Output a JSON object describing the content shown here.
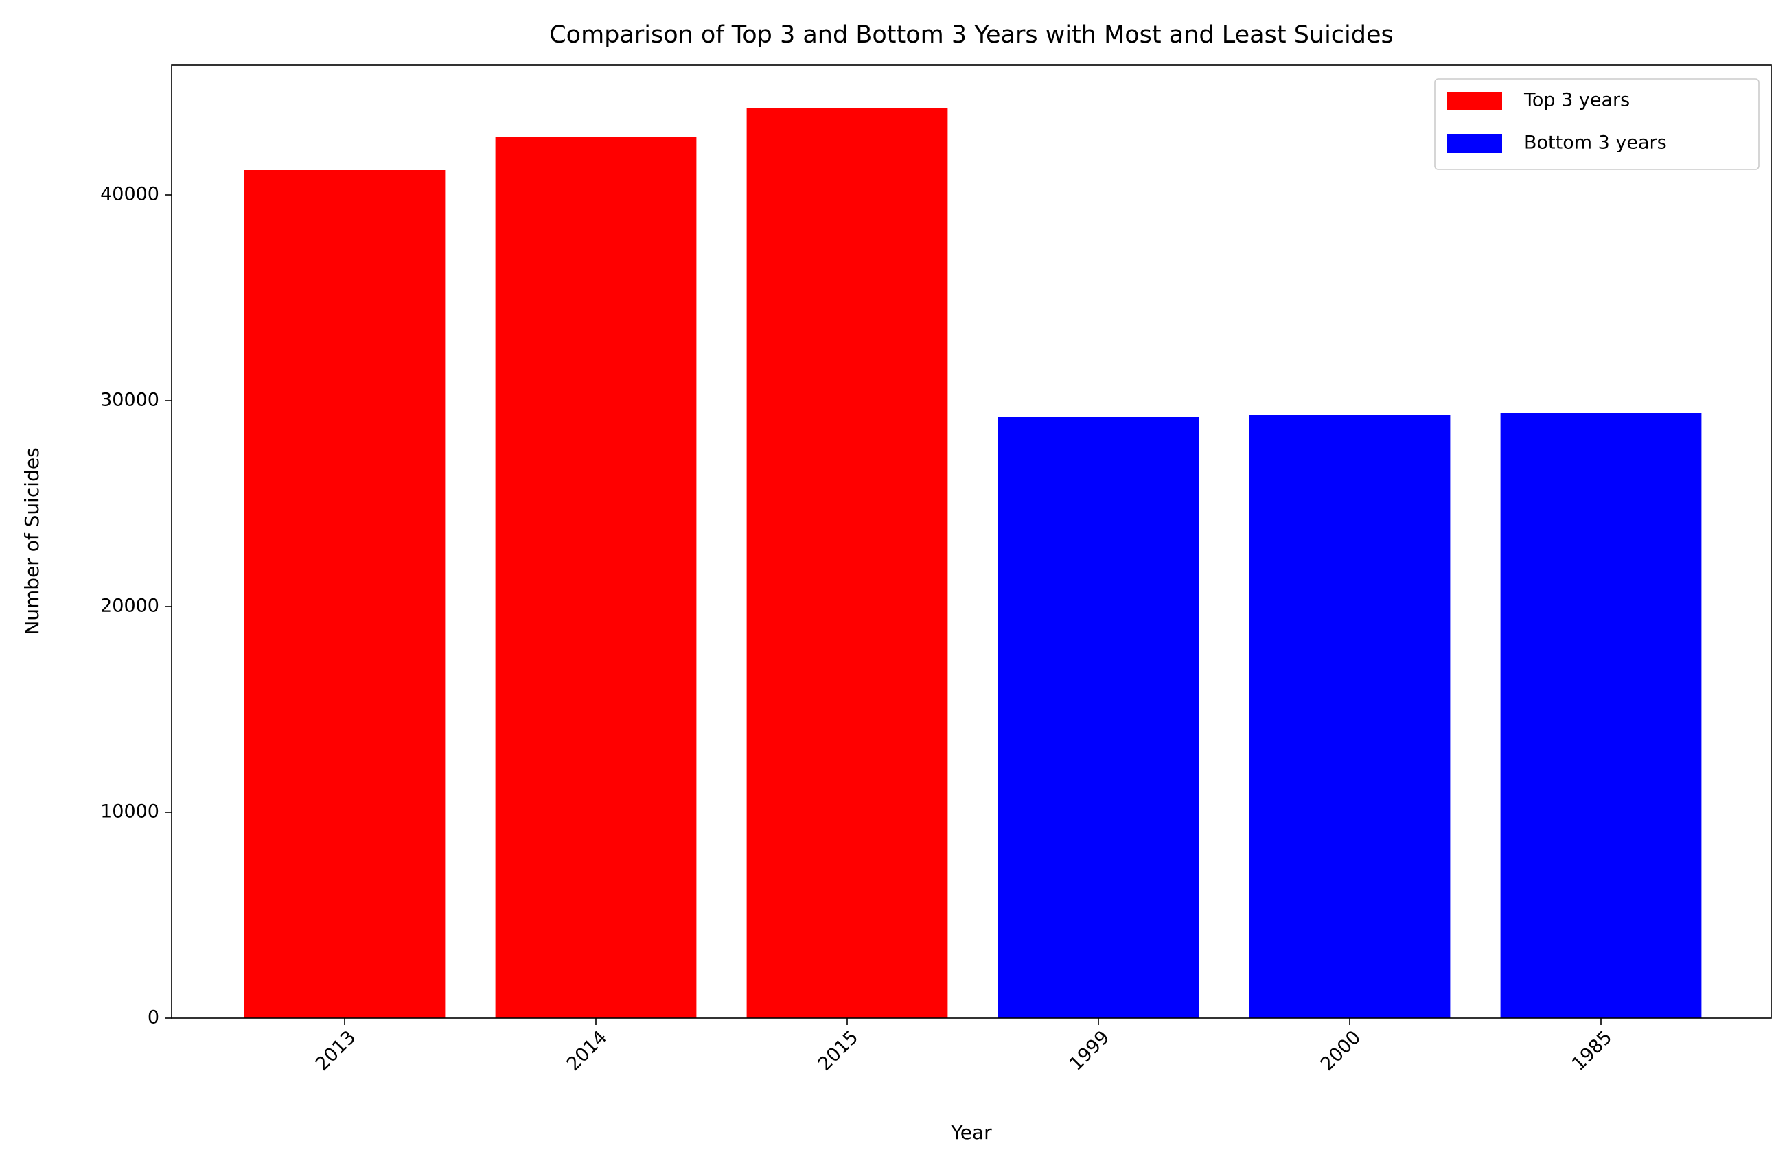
{
  "chart_data": {
    "type": "bar",
    "title": "Comparison of Top 3 and Bottom 3 Years with Most and Least Suicides",
    "x_label": "Year",
    "y_label": "Number of Suicides",
    "categories": [
      "2013",
      "2014",
      "2015",
      "1999",
      "2000",
      "1985"
    ],
    "series": [
      {
        "name": "Top 3 years",
        "color": "#ff0000",
        "values": [
          41200,
          42800,
          44200,
          null,
          null,
          null
        ]
      },
      {
        "name": "Bottom 3 years",
        "color": "#0000ff",
        "values": [
          null,
          null,
          null,
          29200,
          29300,
          29400
        ]
      }
    ],
    "ylim": [
      0,
      46300
    ],
    "yticks": [
      0,
      10000,
      20000,
      30000,
      40000
    ],
    "grid": false,
    "legend": "upper right"
  }
}
